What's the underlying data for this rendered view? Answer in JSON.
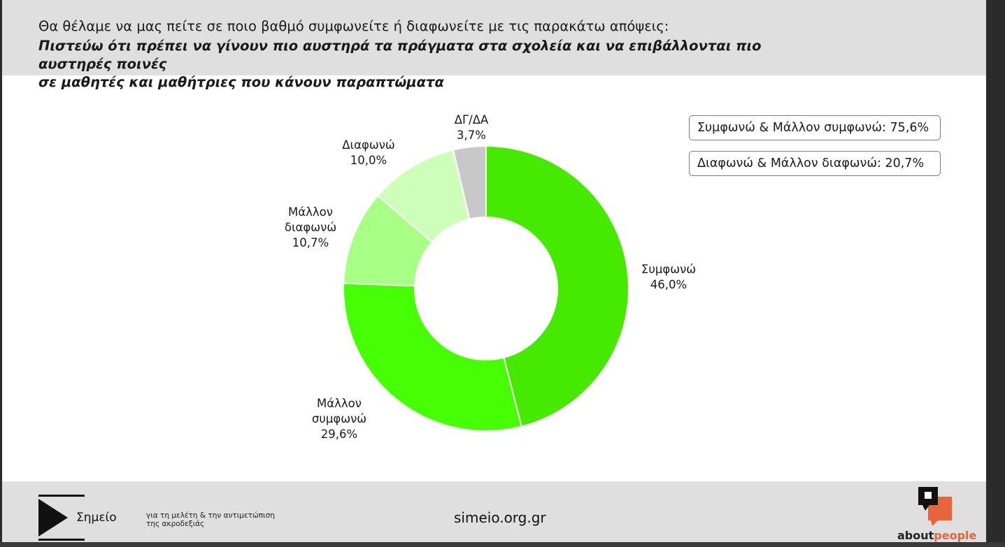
{
  "header": {
    "question": "Θα θέλαμε να μας πείτε σε ποιο βαθμό συμφωνείτε ή διαφωνείτε με τις παρακάτω απόψεις:",
    "statement_line1": "Πιστεύω ότι πρέπει να γίνουν πιο αυστηρά τα πράγματα στα σχολεία και να επιβάλλονται πιο αυστηρές ποινές",
    "statement_line2": "σε μαθητές και μαθήτριες που κάνουν παραπτώματα"
  },
  "chart_data": {
    "type": "pie",
    "donut": true,
    "slices": [
      {
        "lines": [
          "Συμφωνώ"
        ],
        "value_label": "46,0%",
        "value": 46.0,
        "color": "#46ea00"
      },
      {
        "lines": [
          "Μάλλον",
          "συμφωνώ"
        ],
        "value_label": "29,6%",
        "value": 29.6,
        "color": "#47ff05"
      },
      {
        "lines": [
          "Μάλλον",
          "διαφωνώ"
        ],
        "value_label": "10,7%",
        "value": 10.7,
        "color": "#a8ff85"
      },
      {
        "lines": [
          "Διαφωνώ"
        ],
        "value_label": "10,0%",
        "value": 10.0,
        "color": "#cdffba"
      },
      {
        "lines": [
          "ΔΓ/ΔΑ"
        ],
        "value_label": "3,7%",
        "value": 3.7,
        "color": "#c8c8c8"
      }
    ]
  },
  "summary": {
    "agree_total": "Συμφωνώ & Μάλλον συμφωνώ: 75,6%",
    "disagree_total": "Διαφωνώ & Μάλλον διαφωνώ: 20,7%"
  },
  "footer": {
    "org_name": "Σημείο",
    "org_tagline_line1": "για τη μελέτη & την αντιμετώπιση",
    "org_tagline_line2": "της ακροδεξιάς",
    "website": "simeio.org.gr",
    "partner_about": "about",
    "partner_people": "people"
  }
}
